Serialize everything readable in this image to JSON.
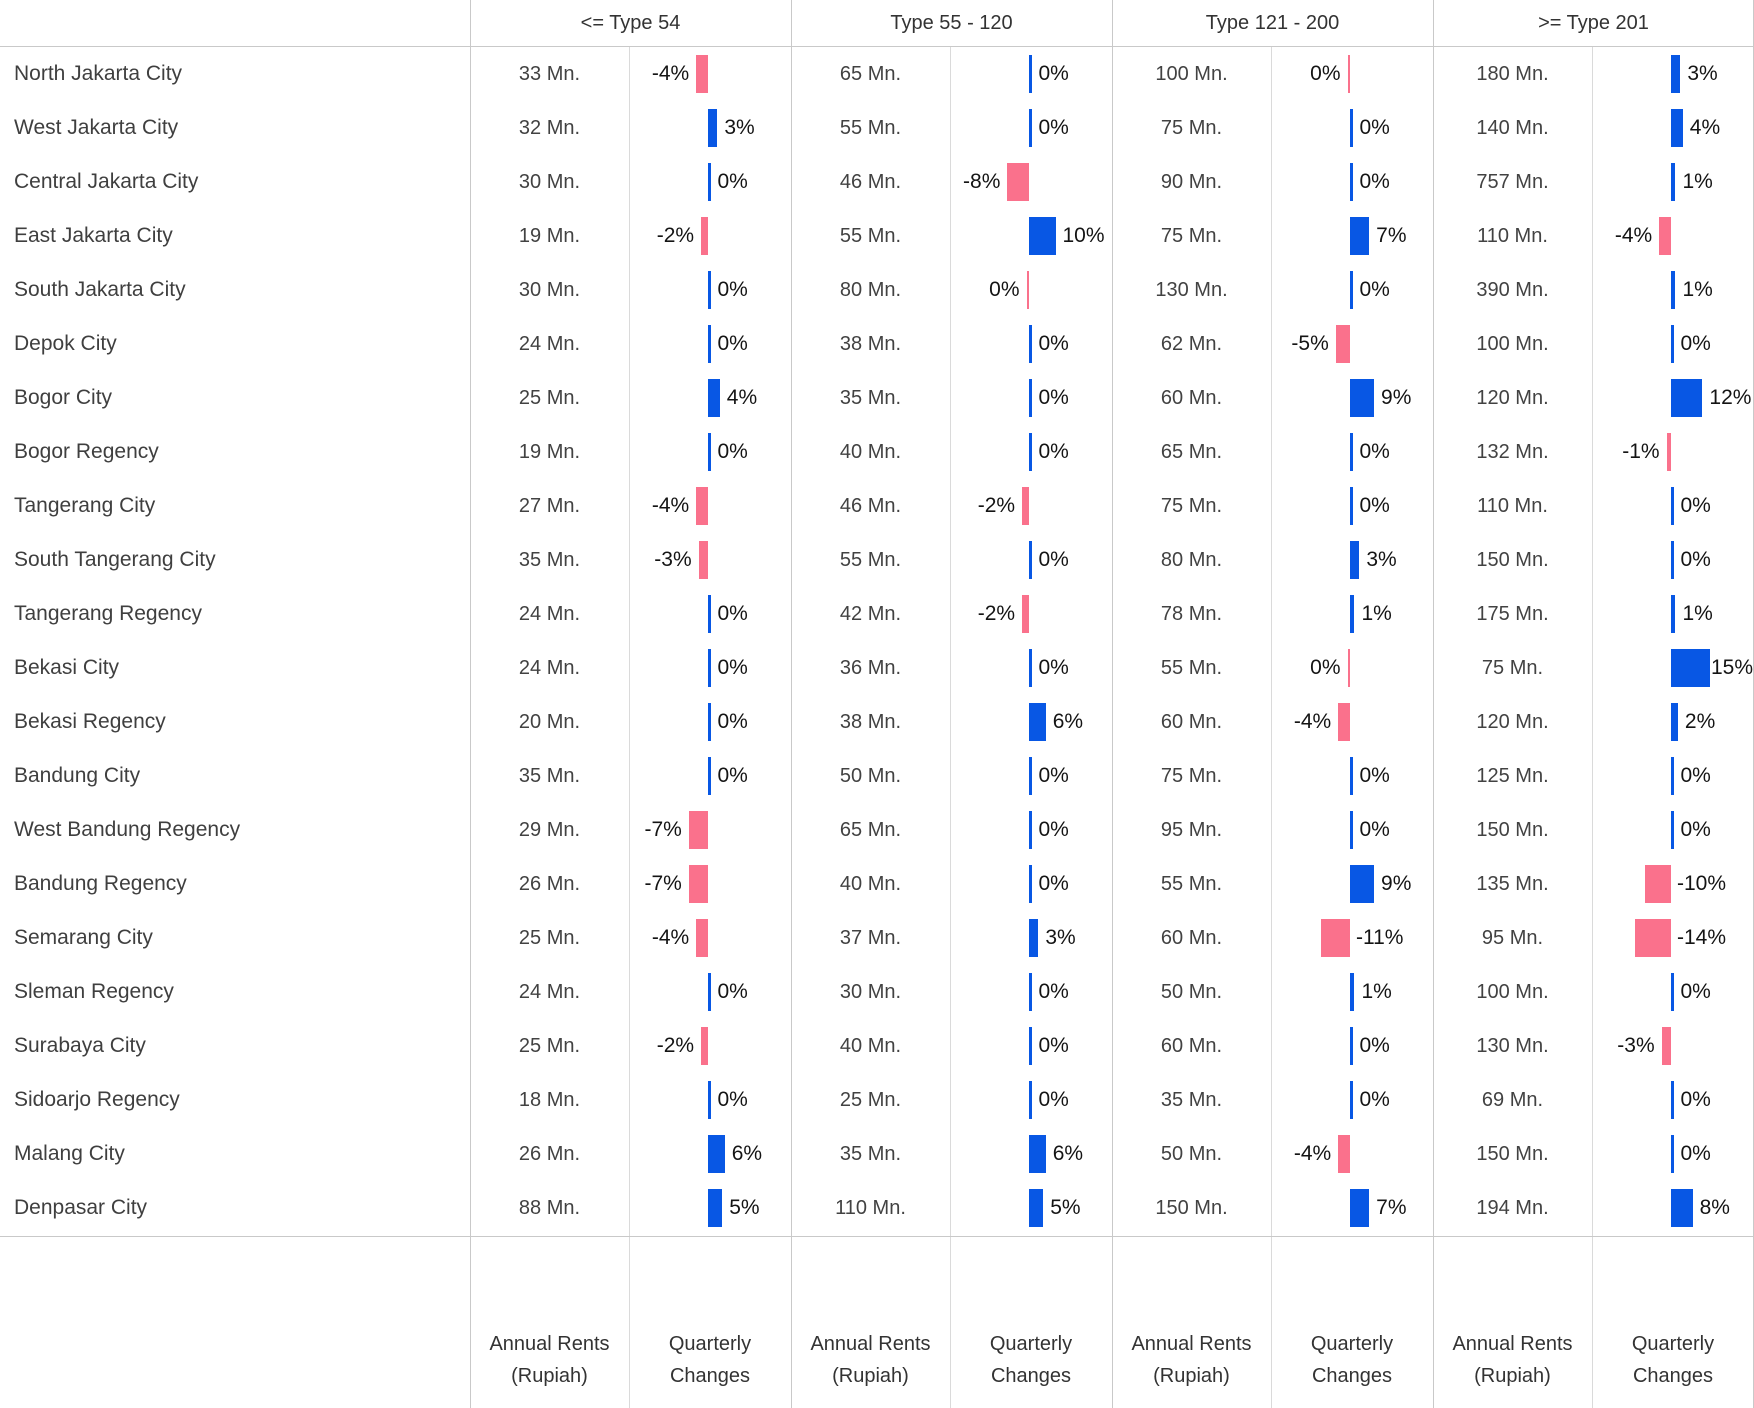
{
  "colors": {
    "positive_bar": "#0857E4",
    "negative_bar": "#FA718C",
    "gridline": "#c9c9c9",
    "text": "#3f3f3f"
  },
  "footer": {
    "annual_line1": "Annual Rents",
    "annual_line2": "(Rupiah)",
    "quarterly_line1": "Quarterly",
    "quarterly_line2": "Changes"
  },
  "chart_data": {
    "type": "table",
    "group_columns": [
      "<= Type 54",
      "Type 55 - 120",
      "Type 121 - 200",
      ">= Type 201"
    ],
    "sub_columns": [
      "Annual Rents (Rupiah)",
      "Quarterly Changes"
    ],
    "value_unit": "Mn. Rupiah (annual rent)",
    "change_unit": "percent quarterly change",
    "legend_note": "blue bar = positive change, pink bar = negative change",
    "rows": [
      {
        "city": "North Jakarta City",
        "cells": [
          {
            "rent": "33 Mn.",
            "change": "-4%",
            "pct": -4,
            "dir": "down",
            "side": "left"
          },
          {
            "rent": "65 Mn.",
            "change": "0%",
            "pct": 0,
            "dir": "up",
            "side": "right"
          },
          {
            "rent": "100 Mn.",
            "change": "0%",
            "pct": 0,
            "dir": "down",
            "side": "left"
          },
          {
            "rent": "180 Mn.",
            "change": "3%",
            "pct": 3,
            "dir": "up",
            "side": "right"
          }
        ]
      },
      {
        "city": "West Jakarta City",
        "cells": [
          {
            "rent": "32 Mn.",
            "change": "3%",
            "pct": 3,
            "dir": "up",
            "side": "right"
          },
          {
            "rent": "55 Mn.",
            "change": "0%",
            "pct": 0,
            "dir": "up",
            "side": "right"
          },
          {
            "rent": "75 Mn.",
            "change": "0%",
            "pct": 0,
            "dir": "up",
            "side": "right"
          },
          {
            "rent": "140 Mn.",
            "change": "4%",
            "pct": 4,
            "dir": "up",
            "side": "right"
          }
        ]
      },
      {
        "city": "Central Jakarta City",
        "cells": [
          {
            "rent": "30 Mn.",
            "change": "0%",
            "pct": 0,
            "dir": "up",
            "side": "right"
          },
          {
            "rent": "46 Mn.",
            "change": "-8%",
            "pct": -8,
            "dir": "down",
            "side": "left"
          },
          {
            "rent": "90 Mn.",
            "change": "0%",
            "pct": 0,
            "dir": "up",
            "side": "right"
          },
          {
            "rent": "757 Mn.",
            "change": "1%",
            "pct": 1,
            "dir": "up",
            "side": "right"
          }
        ]
      },
      {
        "city": "East Jakarta City",
        "cells": [
          {
            "rent": "19 Mn.",
            "change": "-2%",
            "pct": -2,
            "dir": "down",
            "side": "left"
          },
          {
            "rent": "55 Mn.",
            "change": "10%",
            "pct": 10,
            "dir": "up",
            "side": "right"
          },
          {
            "rent": "75 Mn.",
            "change": "7%",
            "pct": 7,
            "dir": "up",
            "side": "right"
          },
          {
            "rent": "110 Mn.",
            "change": "-4%",
            "pct": -4,
            "dir": "down",
            "side": "left"
          }
        ]
      },
      {
        "city": "South Jakarta City",
        "cells": [
          {
            "rent": "30 Mn.",
            "change": "0%",
            "pct": 0,
            "dir": "up",
            "side": "right"
          },
          {
            "rent": "80 Mn.",
            "change": "0%",
            "pct": 0,
            "dir": "down",
            "side": "left"
          },
          {
            "rent": "130 Mn.",
            "change": "0%",
            "pct": 0,
            "dir": "up",
            "side": "right"
          },
          {
            "rent": "390 Mn.",
            "change": "1%",
            "pct": 1,
            "dir": "up",
            "side": "right"
          }
        ]
      },
      {
        "city": "Depok City",
        "cells": [
          {
            "rent": "24 Mn.",
            "change": "0%",
            "pct": 0,
            "dir": "up",
            "side": "right"
          },
          {
            "rent": "38 Mn.",
            "change": "0%",
            "pct": 0,
            "dir": "up",
            "side": "right"
          },
          {
            "rent": "62 Mn.",
            "change": "-5%",
            "pct": -5,
            "dir": "down",
            "side": "left"
          },
          {
            "rent": "100 Mn.",
            "change": "0%",
            "pct": 0,
            "dir": "up",
            "side": "right"
          }
        ]
      },
      {
        "city": "Bogor City",
        "cells": [
          {
            "rent": "25 Mn.",
            "change": "4%",
            "pct": 4,
            "dir": "up",
            "side": "right"
          },
          {
            "rent": "35 Mn.",
            "change": "0%",
            "pct": 0,
            "dir": "up",
            "side": "right"
          },
          {
            "rent": "60 Mn.",
            "change": "9%",
            "pct": 9,
            "dir": "up",
            "side": "right"
          },
          {
            "rent": "120 Mn.",
            "change": "12%",
            "pct": 12,
            "dir": "up",
            "side": "right"
          }
        ]
      },
      {
        "city": "Bogor Regency",
        "cells": [
          {
            "rent": "19 Mn.",
            "change": "0%",
            "pct": 0,
            "dir": "up",
            "side": "right"
          },
          {
            "rent": "40 Mn.",
            "change": "0%",
            "pct": 0,
            "dir": "up",
            "side": "right"
          },
          {
            "rent": "65 Mn.",
            "change": "0%",
            "pct": 0,
            "dir": "up",
            "side": "right"
          },
          {
            "rent": "132 Mn.",
            "change": "-1%",
            "pct": -1,
            "dir": "down",
            "side": "left"
          }
        ]
      },
      {
        "city": "Tangerang City",
        "cells": [
          {
            "rent": "27 Mn.",
            "change": "-4%",
            "pct": -4,
            "dir": "down",
            "side": "left"
          },
          {
            "rent": "46 Mn.",
            "change": "-2%",
            "pct": -2,
            "dir": "down",
            "side": "left"
          },
          {
            "rent": "75 Mn.",
            "change": "0%",
            "pct": 0,
            "dir": "up",
            "side": "right"
          },
          {
            "rent": "110 Mn.",
            "change": "0%",
            "pct": 0,
            "dir": "up",
            "side": "right"
          }
        ]
      },
      {
        "city": "South Tangerang City",
        "cells": [
          {
            "rent": "35 Mn.",
            "change": "-3%",
            "pct": -3,
            "dir": "down",
            "side": "left"
          },
          {
            "rent": "55 Mn.",
            "change": "0%",
            "pct": 0,
            "dir": "up",
            "side": "right"
          },
          {
            "rent": "80 Mn.",
            "change": "3%",
            "pct": 3,
            "dir": "up",
            "side": "right"
          },
          {
            "rent": "150 Mn.",
            "change": "0%",
            "pct": 0,
            "dir": "up",
            "side": "right"
          }
        ]
      },
      {
        "city": "Tangerang Regency",
        "cells": [
          {
            "rent": "24 Mn.",
            "change": "0%",
            "pct": 0,
            "dir": "up",
            "side": "right"
          },
          {
            "rent": "42 Mn.",
            "change": "-2%",
            "pct": -2,
            "dir": "down",
            "side": "left"
          },
          {
            "rent": "78 Mn.",
            "change": "1%",
            "pct": 1,
            "dir": "up",
            "side": "right"
          },
          {
            "rent": "175 Mn.",
            "change": "1%",
            "pct": 1,
            "dir": "up",
            "side": "right"
          }
        ]
      },
      {
        "city": "Bekasi City",
        "cells": [
          {
            "rent": "24 Mn.",
            "change": "0%",
            "pct": 0,
            "dir": "up",
            "side": "right"
          },
          {
            "rent": "36 Mn.",
            "change": "0%",
            "pct": 0,
            "dir": "up",
            "side": "right"
          },
          {
            "rent": "55 Mn.",
            "change": "0%",
            "pct": 0,
            "dir": "down",
            "side": "left"
          },
          {
            "rent": "75 Mn.",
            "change": "15%",
            "pct": 15,
            "dir": "up",
            "side": "right"
          }
        ]
      },
      {
        "city": "Bekasi Regency",
        "cells": [
          {
            "rent": "20 Mn.",
            "change": "0%",
            "pct": 0,
            "dir": "up",
            "side": "right"
          },
          {
            "rent": "38 Mn.",
            "change": "6%",
            "pct": 6,
            "dir": "up",
            "side": "right"
          },
          {
            "rent": "60 Mn.",
            "change": "-4%",
            "pct": -4,
            "dir": "down",
            "side": "left"
          },
          {
            "rent": "120 Mn.",
            "change": "2%",
            "pct": 2,
            "dir": "up",
            "side": "right"
          }
        ]
      },
      {
        "city": "Bandung City",
        "cells": [
          {
            "rent": "35 Mn.",
            "change": "0%",
            "pct": 0,
            "dir": "up",
            "side": "right"
          },
          {
            "rent": "50 Mn.",
            "change": "0%",
            "pct": 0,
            "dir": "up",
            "side": "right"
          },
          {
            "rent": "75 Mn.",
            "change": "0%",
            "pct": 0,
            "dir": "up",
            "side": "right"
          },
          {
            "rent": "125 Mn.",
            "change": "0%",
            "pct": 0,
            "dir": "up",
            "side": "right"
          }
        ]
      },
      {
        "city": "West Bandung Regency",
        "cells": [
          {
            "rent": "29 Mn.",
            "change": "-7%",
            "pct": -7,
            "dir": "down",
            "side": "left"
          },
          {
            "rent": "65 Mn.",
            "change": "0%",
            "pct": 0,
            "dir": "up",
            "side": "right"
          },
          {
            "rent": "95 Mn.",
            "change": "0%",
            "pct": 0,
            "dir": "up",
            "side": "right"
          },
          {
            "rent": "150 Mn.",
            "change": "0%",
            "pct": 0,
            "dir": "up",
            "side": "right"
          }
        ]
      },
      {
        "city": "Bandung Regency",
        "cells": [
          {
            "rent": "26 Mn.",
            "change": "-7%",
            "pct": -7,
            "dir": "down",
            "side": "left"
          },
          {
            "rent": "40 Mn.",
            "change": "0%",
            "pct": 0,
            "dir": "up",
            "side": "right"
          },
          {
            "rent": "55 Mn.",
            "change": "9%",
            "pct": 9,
            "dir": "up",
            "side": "right"
          },
          {
            "rent": "135 Mn.",
            "change": "-10%",
            "pct": -10,
            "dir": "down",
            "side": "right"
          }
        ]
      },
      {
        "city": "Semarang City",
        "cells": [
          {
            "rent": "25 Mn.",
            "change": "-4%",
            "pct": -4,
            "dir": "down",
            "side": "left"
          },
          {
            "rent": "37 Mn.",
            "change": "3%",
            "pct": 3,
            "dir": "up",
            "side": "right"
          },
          {
            "rent": "60 Mn.",
            "change": "-11%",
            "pct": -11,
            "dir": "down",
            "side": "right"
          },
          {
            "rent": "95 Mn.",
            "change": "-14%",
            "pct": -14,
            "dir": "down",
            "side": "right"
          }
        ]
      },
      {
        "city": "Sleman Regency",
        "cells": [
          {
            "rent": "24 Mn.",
            "change": "0%",
            "pct": 0,
            "dir": "up",
            "side": "right"
          },
          {
            "rent": "30 Mn.",
            "change": "0%",
            "pct": 0,
            "dir": "up",
            "side": "right"
          },
          {
            "rent": "50 Mn.",
            "change": "1%",
            "pct": 1,
            "dir": "up",
            "side": "right"
          },
          {
            "rent": "100 Mn.",
            "change": "0%",
            "pct": 0,
            "dir": "up",
            "side": "right"
          }
        ]
      },
      {
        "city": "Surabaya City",
        "cells": [
          {
            "rent": "25 Mn.",
            "change": "-2%",
            "pct": -2,
            "dir": "down",
            "side": "left"
          },
          {
            "rent": "40 Mn.",
            "change": "0%",
            "pct": 0,
            "dir": "up",
            "side": "right"
          },
          {
            "rent": "60 Mn.",
            "change": "0%",
            "pct": 0,
            "dir": "up",
            "side": "right"
          },
          {
            "rent": "130 Mn.",
            "change": "-3%",
            "pct": -3,
            "dir": "down",
            "side": "left"
          }
        ]
      },
      {
        "city": "Sidoarjo Regency",
        "cells": [
          {
            "rent": "18 Mn.",
            "change": "0%",
            "pct": 0,
            "dir": "up",
            "side": "right"
          },
          {
            "rent": "25 Mn.",
            "change": "0%",
            "pct": 0,
            "dir": "up",
            "side": "right"
          },
          {
            "rent": "35 Mn.",
            "change": "0%",
            "pct": 0,
            "dir": "up",
            "side": "right"
          },
          {
            "rent": "69 Mn.",
            "change": "0%",
            "pct": 0,
            "dir": "up",
            "side": "right"
          }
        ]
      },
      {
        "city": "Malang City",
        "cells": [
          {
            "rent": "26 Mn.",
            "change": "6%",
            "pct": 6,
            "dir": "up",
            "side": "right"
          },
          {
            "rent": "35 Mn.",
            "change": "6%",
            "pct": 6,
            "dir": "up",
            "side": "right"
          },
          {
            "rent": "50 Mn.",
            "change": "-4%",
            "pct": -4,
            "dir": "down",
            "side": "left"
          },
          {
            "rent": "150 Mn.",
            "change": "0%",
            "pct": 0,
            "dir": "up",
            "side": "right"
          }
        ]
      },
      {
        "city": "Denpasar City",
        "cells": [
          {
            "rent": "88 Mn.",
            "change": "5%",
            "pct": 5,
            "dir": "up",
            "side": "right"
          },
          {
            "rent": "110 Mn.",
            "change": "5%",
            "pct": 5,
            "dir": "up",
            "side": "right"
          },
          {
            "rent": "150 Mn.",
            "change": "7%",
            "pct": 7,
            "dir": "up",
            "side": "right"
          },
          {
            "rent": "194 Mn.",
            "change": "8%",
            "pct": 8,
            "dir": "up",
            "side": "right"
          }
        ]
      }
    ]
  }
}
